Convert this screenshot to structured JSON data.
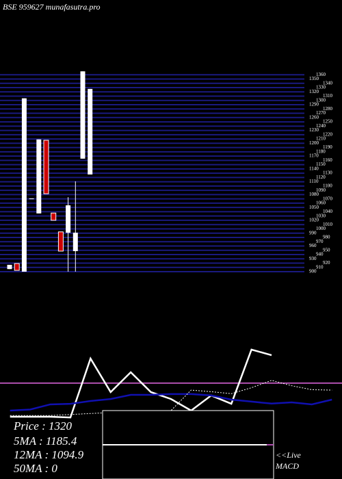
{
  "chart_data": [
    {
      "type": "candlestick",
      "title": "BSE 959627 munafasutra.pro",
      "categories": [
        null,
        null,
        null,
        null,
        null,
        null,
        null,
        null,
        null,
        null,
        null,
        null
      ],
      "open": [
        906,
        919,
        900,
        1071,
        1036,
        1207,
        1037,
        993,
        991,
        948,
        1164,
        1127
      ],
      "high": [
        916,
        919,
        1305,
        1071,
        1209,
        1207,
        1037,
        993,
        1074,
        1111,
        1368,
        1327
      ],
      "low": [
        906,
        903,
        900,
        1071,
        1036,
        1082,
        1020,
        948,
        900,
        900,
        1164,
        1127
      ],
      "close": [
        916,
        903,
        1305,
        1071,
        1209,
        1082,
        1020,
        948,
        1055,
        991,
        1368,
        1327
      ],
      "up_color": "#ffffff",
      "down_color": "#cc0000",
      "grid_color": "#1a1a80",
      "ylim": [
        900,
        1370
      ],
      "yticks": [
        900,
        910,
        920,
        930,
        940,
        950,
        960,
        970,
        980,
        990,
        1000,
        1010,
        1020,
        1030,
        1040,
        1050,
        1060,
        1070,
        1080,
        1090,
        1100,
        1110,
        1120,
        1130,
        1140,
        1150,
        1160,
        1170,
        1180,
        1190,
        1200,
        1210,
        1220,
        1230,
        1240,
        1250,
        1260,
        1270,
        1280,
        1290,
        1300,
        1310,
        1320,
        1330,
        1340,
        1350,
        1360
      ],
      "grid": true
    },
    {
      "type": "line",
      "x": [
        0,
        1,
        2,
        3,
        4,
        5,
        6,
        7,
        8,
        9,
        10,
        11,
        12,
        13,
        14,
        15,
        16
      ],
      "xlim": [
        -0.5,
        16.5
      ],
      "ylim": [
        0,
        100
      ],
      "series": [
        {
          "color": "#ffffff",
          "style": "solid",
          "values": [
            31.4,
            31.4,
            31.4,
            31,
            60.7,
            43.8,
            53.8,
            43.8,
            40.3,
            34.5,
            42.1,
            37.9,
            65.2,
            62.4,
            null,
            null,
            null
          ]
        },
        {
          "color": "#1010b0",
          "style": "solid",
          "values": [
            34.5,
            35,
            37.6,
            37.9,
            39.3,
            40.3,
            42.4,
            42.4,
            42.8,
            42.8,
            42.1,
            40,
            39,
            38,
            38.6,
            37.6,
            40
          ]
        },
        {
          "color": "#ffffff",
          "style": "dotted",
          "values": [
            32,
            32,
            32,
            32.5,
            33,
            33.5,
            34,
            34,
            34.5,
            44.8,
            44,
            43,
            46,
            49.7,
            47,
            45,
            44.8
          ]
        }
      ],
      "level": 48.3,
      "level_color": "#b050b0",
      "annotations": [
        "Price  : 1320",
        "5MA : 1185.4",
        "12MA : 1094.9",
        "50MA : 0"
      ],
      "live_label": "<<Live",
      "macd_label": "MACD"
    }
  ]
}
